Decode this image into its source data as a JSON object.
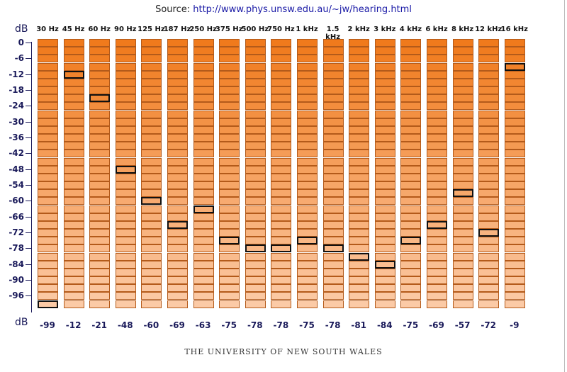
{
  "source": {
    "prefix": "Source:",
    "link": "http://www.phys.unsw.edu.au/~jw/hearing.html"
  },
  "footer": "THE UNIVERSITY OF NEW SOUTH WALES",
  "colors": {
    "top_row": "#f07a1c",
    "bottom_row": "#fbcaa6",
    "selected_border": "#111111",
    "label": "#1a1a5a"
  },
  "chart_data": {
    "type": "heatmap",
    "title": "",
    "xlabel": "",
    "ylabel": "dB",
    "y_unit_label_top": "dB",
    "y_unit_label_bottom": "dB",
    "categories": [
      "30 Hz",
      "45 Hz",
      "60 Hz",
      "90 Hz",
      "125 Hz",
      "187 Hz",
      "250 Hz",
      "375 Hz",
      "500 Hz",
      "750 Hz",
      "1 kHz",
      "1.5 kHz",
      "2 kHz",
      "3 kHz",
      "4 kHz",
      "6 kHz",
      "8 kHz",
      "12 kHz",
      "16 kHz"
    ],
    "y_levels_step": 3,
    "ylim": [
      -99,
      0
    ],
    "y_tick_labels": [
      "0",
      "-6",
      "-12",
      "-18",
      "-24",
      "-30",
      "-36",
      "-42",
      "-48",
      "-54",
      "-60",
      "-66",
      "-72",
      "-78",
      "-84",
      "-90",
      "-96"
    ],
    "y_tick_values": [
      0,
      -6,
      -12,
      -18,
      -24,
      -30,
      -36,
      -42,
      -48,
      -54,
      -60,
      -66,
      -72,
      -78,
      -84,
      -90,
      -96
    ],
    "values": [
      -99,
      -12,
      -21,
      -48,
      -60,
      -69,
      -63,
      -75,
      -78,
      -78,
      -75,
      -78,
      -81,
      -84,
      -75,
      -69,
      -57,
      -72,
      -9
    ],
    "value_labels": [
      "-99",
      "-12",
      "-21",
      "-48",
      "-60",
      "-69",
      "-63",
      "-75",
      "-78",
      "-78",
      "-75",
      "-78",
      "-81",
      "-84",
      "-75",
      "-69",
      "-57",
      "-72",
      "-9"
    ]
  }
}
